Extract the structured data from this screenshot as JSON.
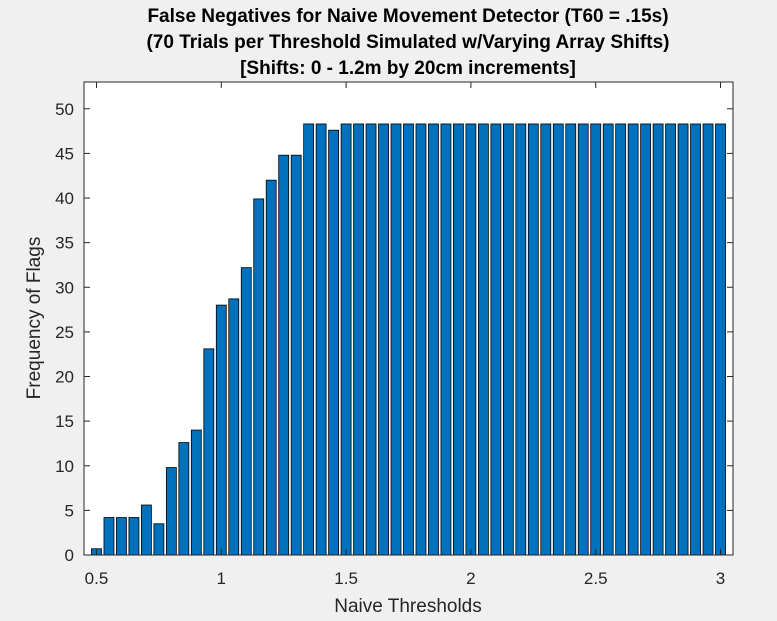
{
  "chart_data": {
    "type": "bar",
    "title": [
      "False Negatives for Naive Movement Detector (T60 = .15s)",
      "(70 Trials per Threshold Simulated w/Varying Array Shifts)",
      "[Shifts: 0 - 1.2m by 20cm increments]"
    ],
    "xlabel": "Naive Thresholds",
    "ylabel": "Frequency of Flags",
    "xlim": [
      0.45,
      3.05
    ],
    "ylim": [
      0,
      53
    ],
    "xticks": [
      0.5,
      1,
      1.5,
      2,
      2.5,
      3
    ],
    "xtick_labels": [
      "0.5",
      "1",
      "1.5",
      "2",
      "2.5",
      "3"
    ],
    "yticks": [
      0,
      5,
      10,
      15,
      20,
      25,
      30,
      35,
      40,
      45,
      50
    ],
    "ytick_labels": [
      "0",
      "5",
      "10",
      "15",
      "20",
      "25",
      "30",
      "35",
      "40",
      "45",
      "50"
    ],
    "grid": false,
    "bar_color": "#0072bd",
    "x": [
      0.5,
      0.55,
      0.6,
      0.65,
      0.7,
      0.75,
      0.8,
      0.85,
      0.9,
      0.95,
      1.0,
      1.05,
      1.1,
      1.15,
      1.2,
      1.25,
      1.3,
      1.35,
      1.4,
      1.45,
      1.5,
      1.55,
      1.6,
      1.65,
      1.7,
      1.75,
      1.8,
      1.85,
      1.9,
      1.95,
      2.0,
      2.05,
      2.1,
      2.15,
      2.2,
      2.25,
      2.3,
      2.35,
      2.4,
      2.45,
      2.5,
      2.55,
      2.6,
      2.65,
      2.7,
      2.75,
      2.8,
      2.85,
      2.9,
      2.95,
      3.0
    ],
    "values": [
      0.7,
      4.2,
      4.2,
      4.2,
      5.6,
      3.5,
      9.8,
      12.6,
      14.0,
      23.1,
      28.0,
      28.7,
      32.2,
      39.9,
      42.0,
      44.8,
      44.8,
      48.3,
      48.3,
      47.6,
      48.3,
      48.3,
      48.3,
      48.3,
      48.3,
      48.3,
      48.3,
      48.3,
      48.3,
      48.3,
      48.3,
      48.3,
      48.3,
      48.3,
      48.3,
      48.3,
      48.3,
      48.3,
      48.3,
      48.3,
      48.3,
      48.3,
      48.3,
      48.3,
      48.3,
      48.3,
      48.3,
      48.3,
      48.3,
      48.3,
      48.3
    ]
  }
}
